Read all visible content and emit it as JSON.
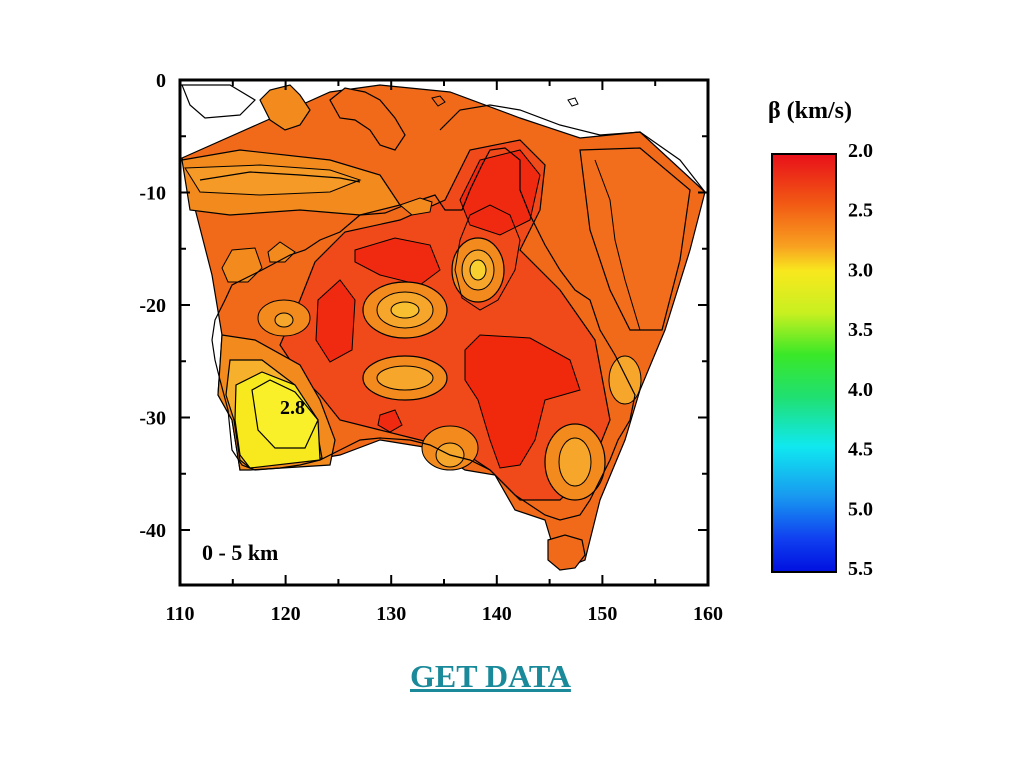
{
  "map": {
    "depth_label": "0 - 5 km",
    "contour_label": "2.8",
    "x_ticks": [
      "110",
      "120",
      "130",
      "140",
      "150",
      "160"
    ],
    "y_ticks": [
      "0",
      "-10",
      "-20",
      "-30",
      "-40"
    ],
    "colors": {
      "deep_orange": "#f06a1a",
      "red_orange": "#f04a1a",
      "red": "#f02a10",
      "orange": "#f28a1e",
      "light_orange": "#f6a62a",
      "yellow": "#f8e81e"
    }
  },
  "colorbar": {
    "title": "β (km/s)",
    "labels": [
      "2.0",
      "2.5",
      "3.0",
      "3.5",
      "4.0",
      "4.5",
      "5.0",
      "5.5"
    ]
  },
  "link": {
    "label": "GET DATA"
  }
}
